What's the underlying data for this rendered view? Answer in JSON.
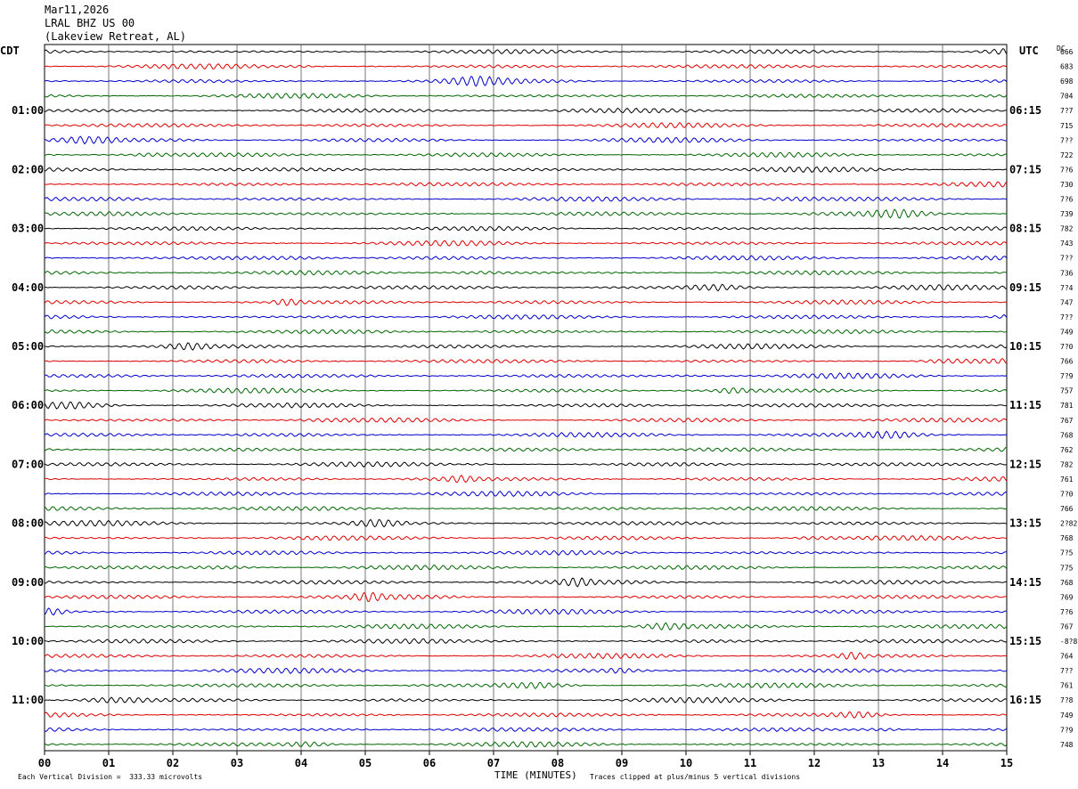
{
  "header": {
    "date": "Mar11,2026",
    "station": "LRAL BHZ US 00",
    "location": "(Lakeview Retreat, AL)"
  },
  "left_tz": "CDT",
  "right_tz": "UTC",
  "dc_label": "DC",
  "footer": {
    "scale_note": "Each Vertical Division =  333.33 microvolts",
    "xaxis_title": "TIME (MINUTES)",
    "clip_note": "Traces clipped at plus/minus 5 vertical divisions"
  },
  "chart_data": {
    "type": "line",
    "xlabel": "TIME (MINUTES)",
    "xlim": [
      0,
      15
    ],
    "x_ticks": [
      "00",
      "01",
      "02",
      "03",
      "04",
      "05",
      "06",
      "07",
      "08",
      "09",
      "10",
      "11",
      "12",
      "13",
      "14",
      "15"
    ],
    "trace_colors": [
      "#000000",
      "#dd0000",
      "#0000cc",
      "#006600"
    ],
    "left_hour_labels": [
      "01:00",
      "02:00",
      "03:00",
      "04:00",
      "05:00",
      "06:00",
      "07:00",
      "08:00",
      "09:00",
      "10:00",
      "11:00"
    ],
    "right_hour_labels": [
      "06:15",
      "07:15",
      "08:15",
      "09:15",
      "10:15",
      "11:15",
      "12:15",
      "13:15",
      "14:15",
      "15:15",
      "16:15"
    ],
    "dc_values": [
      "666",
      "683",
      "698",
      "704",
      "7?7",
      "715",
      "7??",
      "722",
      "7?6",
      "730",
      "7?6",
      "739",
      "782",
      "743",
      "7??",
      "736",
      "7?4",
      "747",
      "7??",
      "749",
      "7?0",
      "766",
      "7?9",
      "757",
      "781",
      "767",
      "768",
      "762",
      "782",
      "761",
      "7?0",
      "766",
      "2?82",
      "768",
      "7?5",
      "775",
      "768",
      "769",
      "7?6",
      "767",
      "-8?8",
      "764",
      "7??",
      "761",
      "7?8",
      "749",
      "7?9",
      "748"
    ]
  }
}
